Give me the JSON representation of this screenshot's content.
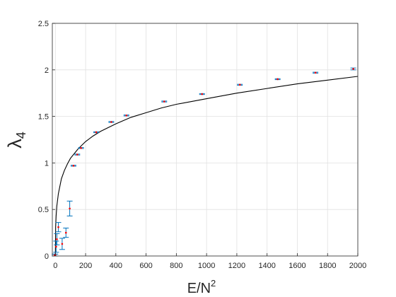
{
  "chart_data": {
    "type": "scatter",
    "title": "",
    "xlabel": {
      "base": "E/N",
      "sup": "2"
    },
    "ylabel": {
      "base": "λ",
      "sub": "4"
    },
    "xlim": [
      -20,
      2000
    ],
    "ylim": [
      0,
      2.5
    ],
    "xticks": [
      0,
      200,
      400,
      600,
      800,
      1000,
      1200,
      1400,
      1600,
      1800,
      2000
    ],
    "yticks": [
      0,
      0.5,
      1,
      1.5,
      2,
      2.5
    ],
    "grid": true,
    "legend": "none",
    "series": [
      {
        "kind": "errorbar",
        "points": [
          {
            "x": -5,
            "y": 0.01,
            "err": 0.01
          },
          {
            "x": 0,
            "y": 0.01,
            "err": 0.01
          },
          {
            "x": 5,
            "y": 0.1,
            "err": 0.06
          },
          {
            "x": 10,
            "y": 0.18,
            "err": 0.06
          },
          {
            "x": 20,
            "y": 0.31,
            "err": 0.05
          },
          {
            "x": 45,
            "y": 0.13,
            "err": 0.06
          },
          {
            "x": 70,
            "y": 0.25,
            "err": 0.05
          },
          {
            "x": 95,
            "y": 0.51,
            "err": 0.08
          },
          {
            "x": 120,
            "y": 0.97,
            "err": 0.005
          },
          {
            "x": 145,
            "y": 1.09,
            "err": 0.005
          },
          {
            "x": 170,
            "y": 1.16,
            "err": 0.005
          },
          {
            "x": 270,
            "y": 1.33,
            "err": 0.005
          },
          {
            "x": 370,
            "y": 1.44,
            "err": 0.005
          },
          {
            "x": 470,
            "y": 1.51,
            "err": 0.005
          },
          {
            "x": 720,
            "y": 1.66,
            "err": 0.005
          },
          {
            "x": 970,
            "y": 1.74,
            "err": 0.005
          },
          {
            "x": 1220,
            "y": 1.84,
            "err": 0.005
          },
          {
            "x": 1470,
            "y": 1.9,
            "err": 0.005
          },
          {
            "x": 1720,
            "y": 1.97,
            "err": 0.005
          },
          {
            "x": 1970,
            "y": 2.01,
            "err": 0.01
          }
        ]
      },
      {
        "kind": "line",
        "x": [
          0,
          2,
          5,
          10,
          20,
          40,
          60,
          80,
          100,
          125,
          150,
          200,
          250,
          300,
          400,
          500,
          600,
          700,
          800,
          900,
          1000,
          1200,
          1400,
          1600,
          1800,
          2000
        ],
        "y": [
          0,
          0.31,
          0.43,
          0.54,
          0.67,
          0.83,
          0.92,
          0.99,
          1.05,
          1.1,
          1.15,
          1.23,
          1.29,
          1.34,
          1.42,
          1.49,
          1.54,
          1.59,
          1.63,
          1.66,
          1.69,
          1.75,
          1.8,
          1.85,
          1.89,
          1.93
        ]
      }
    ]
  },
  "colors": {
    "errorbar": "#0072bd",
    "marker": "#ff0000",
    "curve": "#000000",
    "grid": "#e1e1e1",
    "axis": "#262626"
  }
}
